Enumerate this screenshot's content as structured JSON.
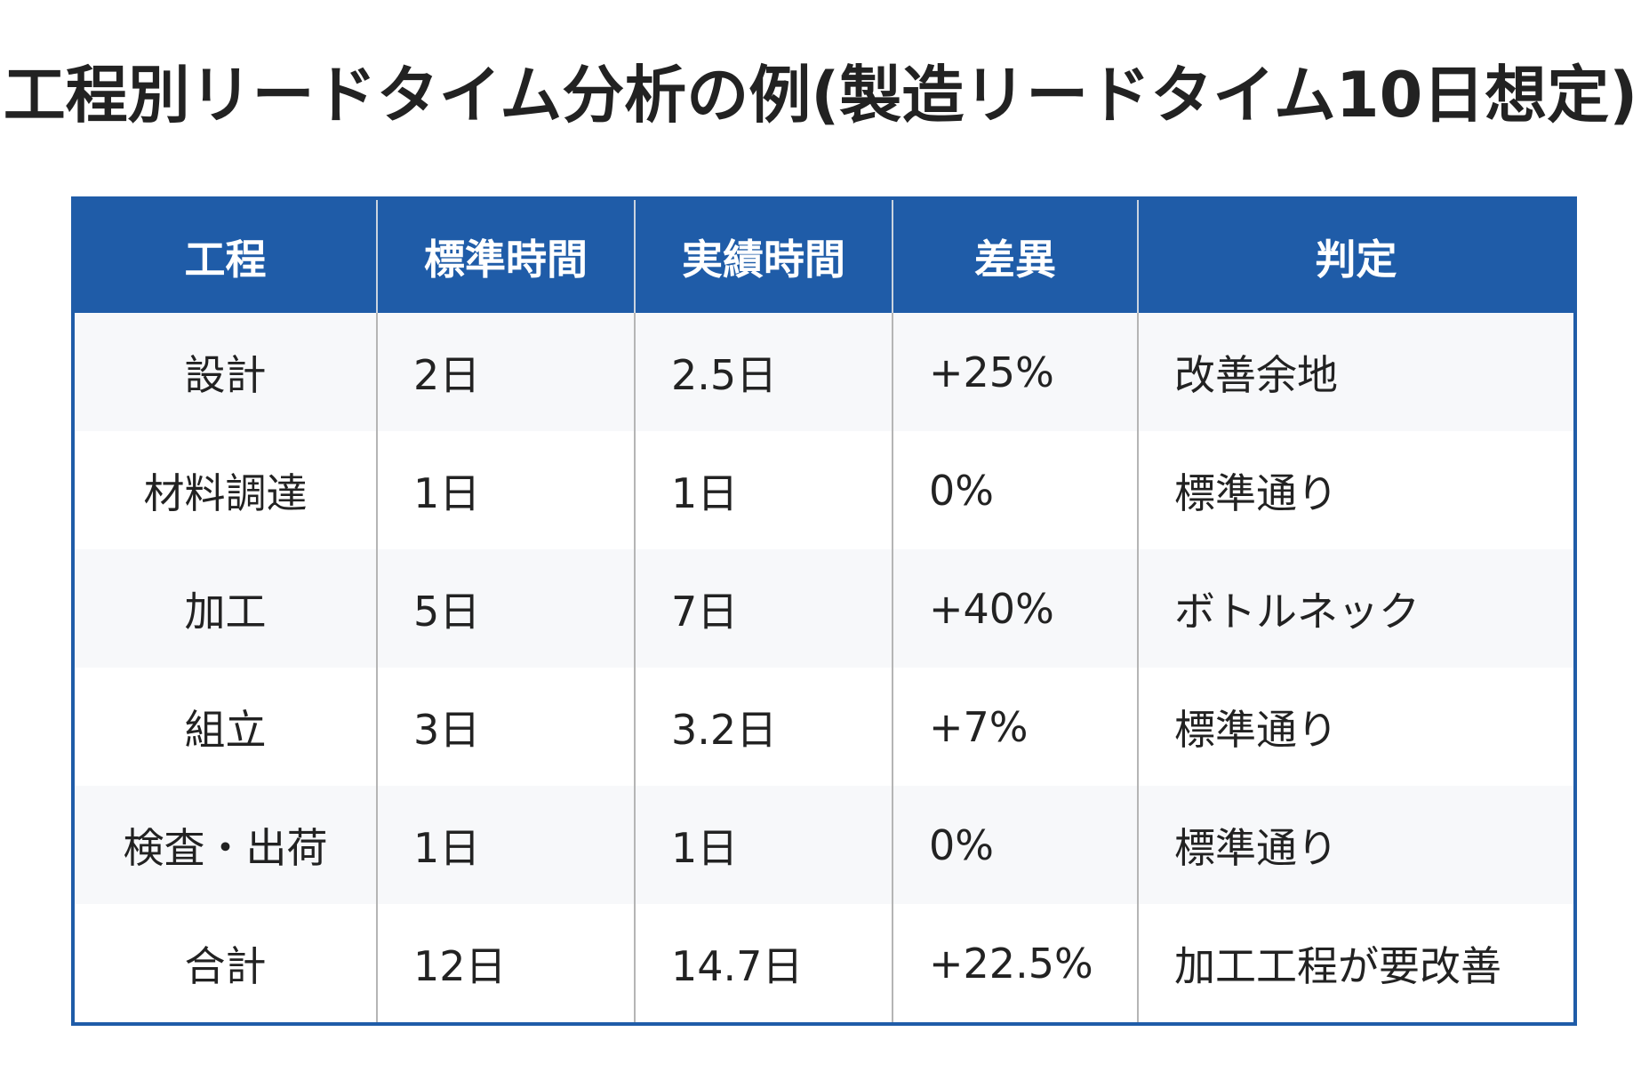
{
  "title": "工程別リードタイム分析の例(製造リードタイム10日想定)",
  "table": {
    "headers": [
      "工程",
      "標準時間",
      "実績時間",
      "差異",
      "判定"
    ],
    "rows": [
      {
        "process": "設計",
        "standard": "2日",
        "actual": "2.5日",
        "diff": "+25%",
        "judgement": "改善余地"
      },
      {
        "process": "材料調達",
        "standard": "1日",
        "actual": "1日",
        "diff": "0%",
        "judgement": "標準通り"
      },
      {
        "process": "加工",
        "standard": "5日",
        "actual": "7日",
        "diff": "+40%",
        "judgement": "ボトルネック"
      },
      {
        "process": "組立",
        "standard": "3日",
        "actual": "3.2日",
        "diff": "+7%",
        "judgement": "標準通り"
      },
      {
        "process": "検査・出荷",
        "standard": "1日",
        "actual": "1日",
        "diff": "0%",
        "judgement": "標準通り"
      },
      {
        "process": "合計",
        "standard": "12日",
        "actual": "14.7日",
        "diff": "+22.5%",
        "judgement": "加工工程が要改善"
      }
    ]
  },
  "colors": {
    "header_bg": "#1f5ca8",
    "header_text": "#ffffff",
    "row_alt_bg": "#f7f8fa",
    "row_bg": "#ffffff"
  }
}
